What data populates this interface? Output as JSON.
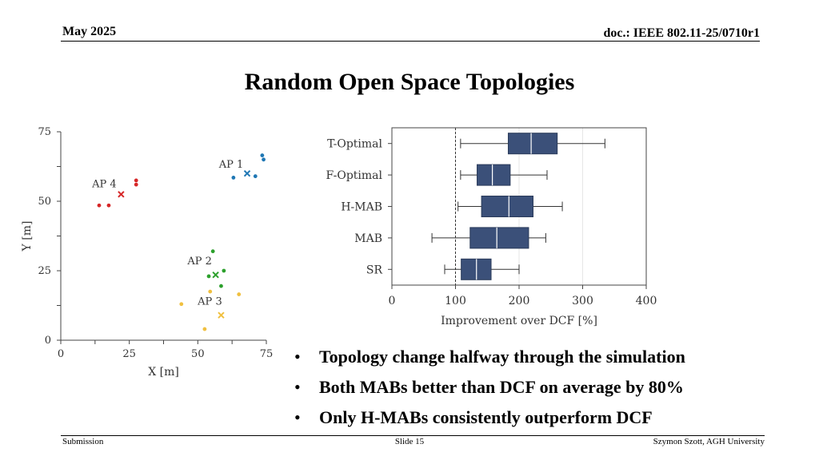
{
  "header": {
    "date": "May 2025",
    "doc": "doc.: IEEE 802.11-25/0710r1"
  },
  "title": "Random Open Space Topologies",
  "chart_data": [
    {
      "type": "scatter",
      "xlabel": "X [m]",
      "ylabel": "Y [m]",
      "xlim": [
        0,
        75
      ],
      "ylim": [
        0,
        75
      ],
      "xticks": [
        "0",
        "25",
        "50",
        "75"
      ],
      "yticks": [
        "0",
        "25",
        "50",
        "75"
      ],
      "annotations": [
        "AP 1",
        "AP 2",
        "AP 3",
        "AP 4"
      ],
      "series": [
        {
          "color": "#1f77b4",
          "ap": {
            "x": 68,
            "y": 60
          },
          "stations": [
            [
              73.5,
              66.5
            ],
            [
              74,
              65
            ],
            [
              63,
              58.5
            ],
            [
              71,
              59
            ]
          ]
        },
        {
          "color": "#2ca02c",
          "ap": {
            "x": 56.5,
            "y": 23.5
          },
          "stations": [
            [
              55.5,
              32
            ],
            [
              59.5,
              25
            ],
            [
              54,
              23
            ],
            [
              58.5,
              19.5
            ]
          ]
        },
        {
          "color": "#f0c040",
          "ap": {
            "x": 58.5,
            "y": 9
          },
          "stations": [
            [
              44,
              13
            ],
            [
              54.5,
              17.5
            ],
            [
              65,
              16.5
            ],
            [
              52.5,
              4
            ]
          ]
        },
        {
          "color": "#d62728",
          "ap": {
            "x": 22,
            "y": 52.5
          },
          "stations": [
            [
              27.5,
              57.5
            ],
            [
              27.5,
              56
            ],
            [
              14,
              48.5
            ],
            [
              17.5,
              48.5
            ]
          ]
        }
      ]
    },
    {
      "type": "box",
      "xlabel": "Improvement over DCF [%]",
      "xlim": [
        0,
        400
      ],
      "xticks": [
        "0",
        "100",
        "200",
        "300",
        "400"
      ],
      "reference_line": 100,
      "categories": [
        "T-Optimal",
        "F-Optimal",
        "H-MAB",
        "MAB",
        "SR"
      ],
      "box_color": "#3b5079",
      "boxes": [
        {
          "min": 108,
          "q1": 183,
          "median": 219,
          "q3": 260,
          "max": 335
        },
        {
          "min": 108,
          "q1": 134,
          "median": 158,
          "q3": 186,
          "max": 244
        },
        {
          "min": 104,
          "q1": 141,
          "median": 184,
          "q3": 222,
          "max": 268
        },
        {
          "min": 63,
          "q1": 123,
          "median": 165,
          "q3": 215,
          "max": 242
        },
        {
          "min": 83,
          "q1": 109,
          "median": 133,
          "q3": 156,
          "max": 200
        }
      ]
    }
  ],
  "bullets": [
    "Topology change halfway through the simulation",
    "Both MABs better than DCF on average by 80%",
    "Only H-MABs consistently outperform DCF"
  ],
  "footer": {
    "left": "Submission",
    "center": "Slide 15",
    "right": "Szymon Szott, AGH University"
  }
}
